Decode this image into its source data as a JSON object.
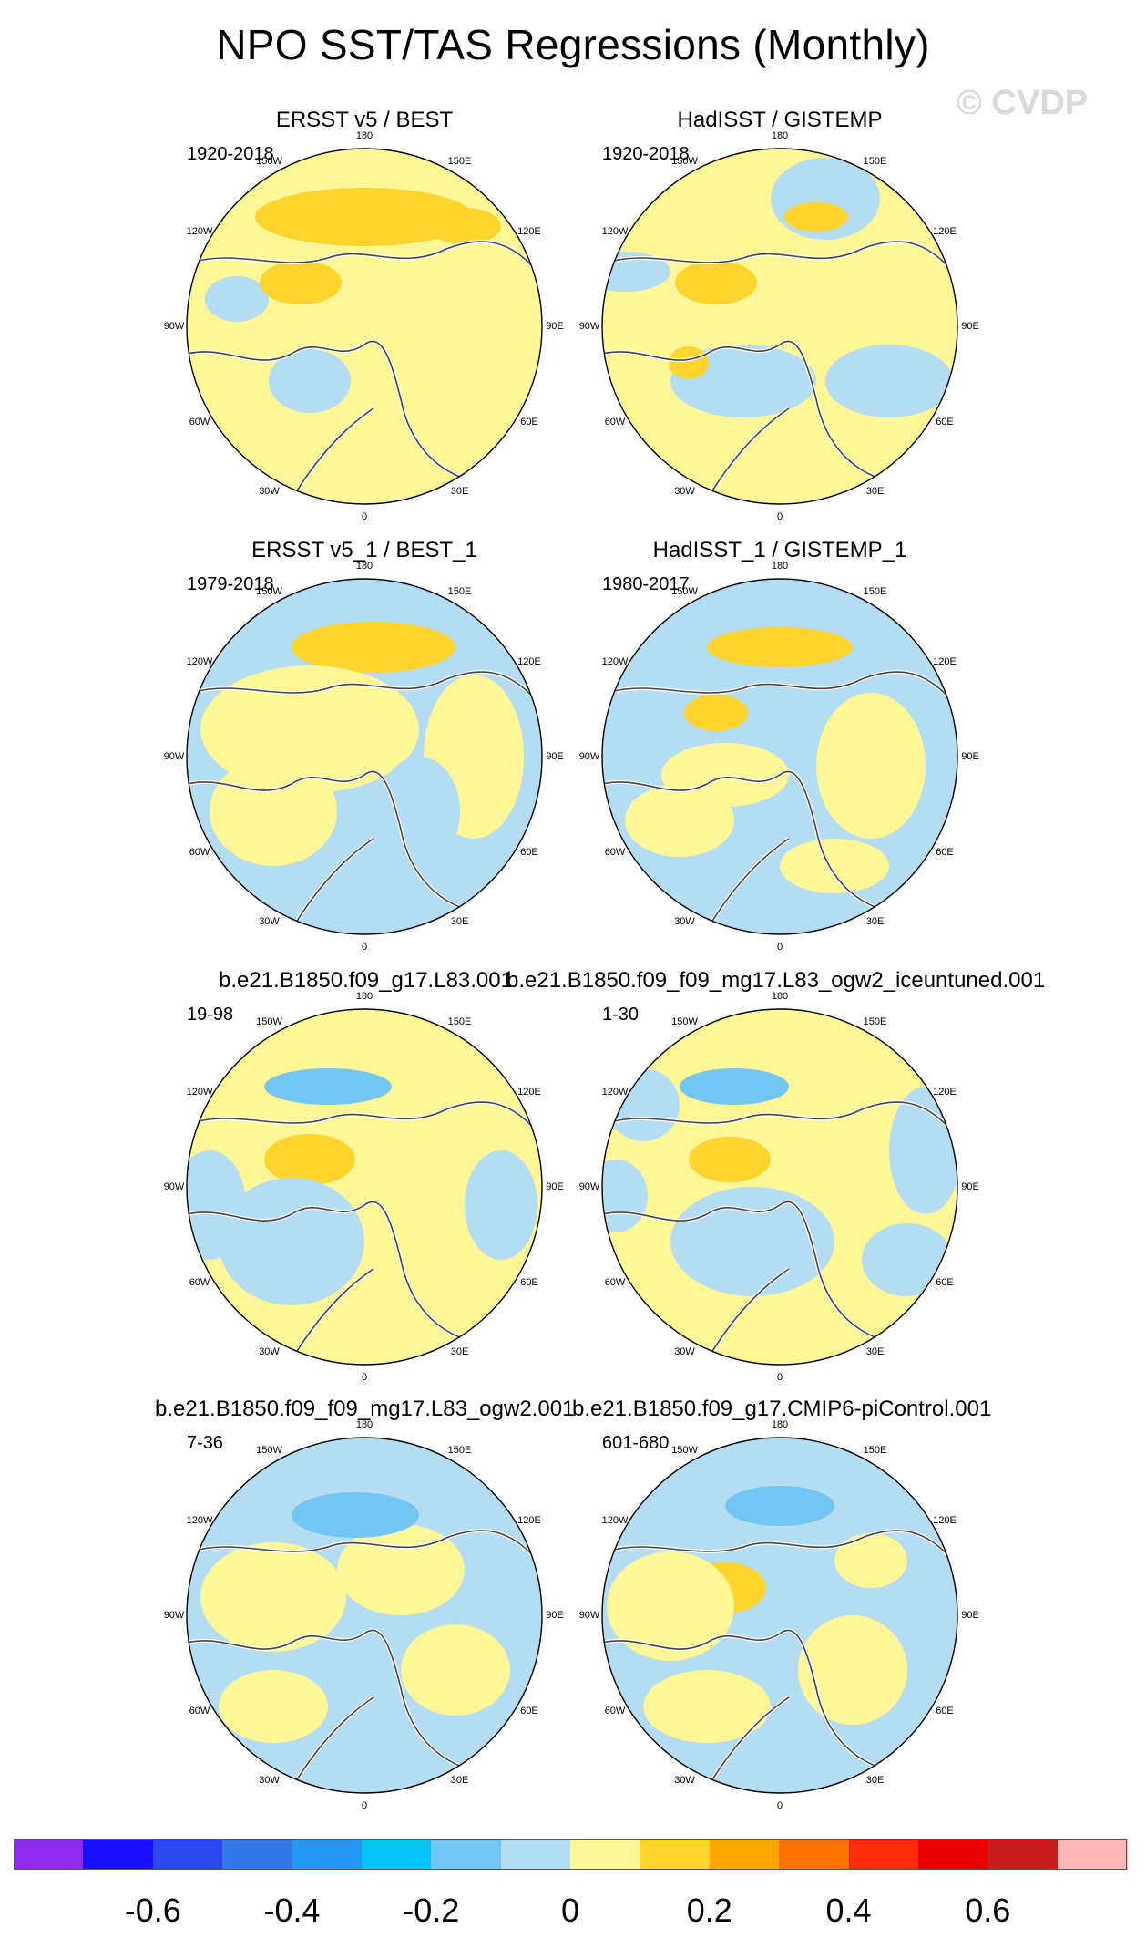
{
  "figure": {
    "title": "NPO SST/TAS Regressions (Monthly)",
    "watermark": "© CVDP"
  },
  "ticks": [
    "180",
    "150E",
    "120E",
    "90E",
    "60E",
    "30E",
    "0",
    "30W",
    "60W",
    "90W",
    "120W",
    "150W"
  ],
  "panels": [
    {
      "title": "ERSST v5 / BEST",
      "years": "1920-2018"
    },
    {
      "title": "HadISST / GISTEMP",
      "years": "1920-2018"
    },
    {
      "title": "ERSST v5_1 / BEST_1",
      "years": "1979-2018"
    },
    {
      "title": "HadISST_1 / GISTEMP_1",
      "years": "1980-2017"
    },
    {
      "title": "b.e21.B1850.f09_g17.L83.001",
      "years": "19-98"
    },
    {
      "title": "b.e21.B1850.f09_f09_mg17.L83_ogw2_iceuntuned.001",
      "years": "1-30"
    },
    {
      "title": "b.e21.B1850.f09_f09_mg17.L83_ogw2.001",
      "years": "7-36"
    },
    {
      "title": "b.e21.B1850.f09_g17.CMIP6-piControl.001",
      "years": "601-680"
    }
  ],
  "colorbar": {
    "colors": [
      "#8d2cf0",
      "#1a0eff",
      "#2b48ee",
      "#3377eb",
      "#2597f8",
      "#04c3f8",
      "#73c6f2",
      "#b4dcf2",
      "#fff697",
      "#ffd42e",
      "#ffa500",
      "#ff7100",
      "#ff2c0c",
      "#e60000",
      "#c71d1d",
      "#ffb6b6"
    ],
    "labels": [
      "-0.6",
      "-0.4",
      "-0.2",
      "0",
      "0.2",
      "0.4",
      "0.6"
    ]
  }
}
